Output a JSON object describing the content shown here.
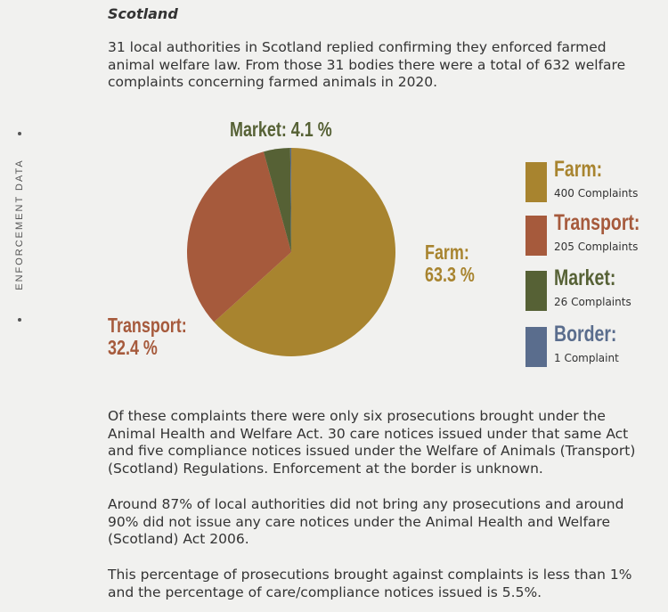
{
  "heading": "Scotland",
  "intro": "31 local authorities in Scotland replied confirming they enforced farmed animal welfare law. From those 31 bodies there were a total of 632 welfare complaints concerning farmed animals in 2020.",
  "side_label": "ENFORCEMENT DATA",
  "chart_data": {
    "type": "pie",
    "start": "top",
    "direction": "clockwise",
    "slices": [
      {
        "name": "Farm",
        "value": 400,
        "percent_label": "63.3 %",
        "legend_title": "Farm:",
        "legend_sub": "400 Complaints",
        "color": "#a8842f"
      },
      {
        "name": "Transport",
        "value": 205,
        "percent_label": "32.4 %",
        "legend_title": "Transport:",
        "legend_sub": "205 Complaints",
        "color": "#a65a3c"
      },
      {
        "name": "Market",
        "value": 26,
        "percent_label": "4.1 %",
        "legend_title": "Market:",
        "legend_sub": "26 Complaints",
        "color": "#566135"
      },
      {
        "name": "Border",
        "value": 1,
        "percent_label": "",
        "legend_title": "Border:",
        "legend_sub": "1 Complaint",
        "color": "#5a6d8d"
      }
    ],
    "labels": {
      "farm": "Farm:",
      "transport": "Transport:",
      "market": "Market: 4.1 %"
    }
  },
  "paragraphs": [
    "Of these complaints there were only six prosecutions brought under the Animal Health and Welfare Act. 30 care notices issued under that same Act and five compliance notices issued under the Welfare of Animals (Transport) (Scotland) Regulations. Enforcement at the border is unknown.",
    "Around 87% of local authorities did not bring any prosecutions and around 90% did not issue any care notices under the Animal Health and Welfare (Scotland) Act 2006.",
    "This percentage of prosecutions brought against complaints is less than 1% and the percentage of care/compliance notices issued is 5.5%."
  ]
}
